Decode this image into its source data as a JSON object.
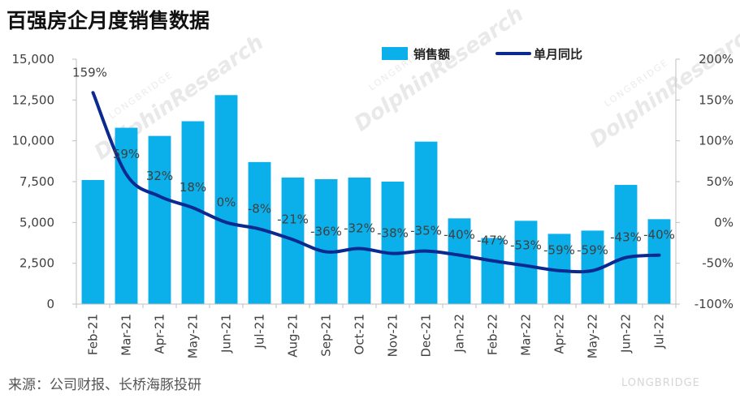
{
  "title": "百强房企月度销售数据",
  "source": "来源：公司财报、长桥海豚投研",
  "watermark": {
    "brand_small": "LONGBRIDGE",
    "brand_large": "DolphinResearch",
    "corner_brand": "LONGBRIDGE"
  },
  "chart_data": {
    "type": "bar",
    "title": "百强房企月度销售数据",
    "categories": [
      "Feb-21",
      "Mar-21",
      "Apr-21",
      "May-21",
      "Jun-21",
      "Jul-21",
      "Aug-21",
      "Sep-21",
      "Oct-21",
      "Nov-21",
      "Dec-21",
      "Jan-22",
      "Feb-22",
      "Mar-22",
      "Apr-22",
      "May-22",
      "Jun-22",
      "Jul-22"
    ],
    "series": [
      {
        "name": "销售额",
        "type": "bar",
        "axis": "left",
        "color": "#0bb0ea",
        "values": [
          7600,
          10800,
          10300,
          11200,
          12800,
          8700,
          7750,
          7650,
          7750,
          7500,
          9950,
          5250,
          4050,
          5100,
          4300,
          4500,
          7300,
          5200
        ]
      },
      {
        "name": "单月同比",
        "type": "line",
        "axis": "right",
        "color": "#0b2a8f",
        "values": [
          159,
          59,
          32,
          18,
          0,
          -8,
          -21,
          -36,
          -32,
          -38,
          -35,
          -40,
          -47,
          -53,
          -59,
          -59,
          -43,
          -40
        ],
        "labels": [
          "159%",
          "59%",
          "32%",
          "18%",
          "0%",
          "-8%",
          "-21%",
          "-36%",
          "-32%",
          "-38%",
          "-35%",
          "-40%",
          "-47%",
          "-53%",
          "-59%",
          "-59%",
          "-43%",
          "-40%"
        ]
      }
    ],
    "y_left": {
      "min": 0,
      "max": 15000,
      "ticks": [
        0,
        2500,
        5000,
        7500,
        10000,
        12500,
        15000
      ],
      "tick_labels": [
        "0",
        "2,500",
        "5,000",
        "7,500",
        "10,000",
        "12,500",
        "15,000"
      ]
    },
    "y_right": {
      "min": -100,
      "max": 200,
      "ticks": [
        -100,
        -50,
        0,
        50,
        100,
        150,
        200
      ],
      "tick_labels": [
        "-100%",
        "-50%",
        "0%",
        "50%",
        "100%",
        "150%",
        "200%"
      ]
    },
    "grid": false,
    "legend": {
      "placement": "top-right",
      "items": [
        "销售额",
        "单月同比"
      ]
    }
  }
}
